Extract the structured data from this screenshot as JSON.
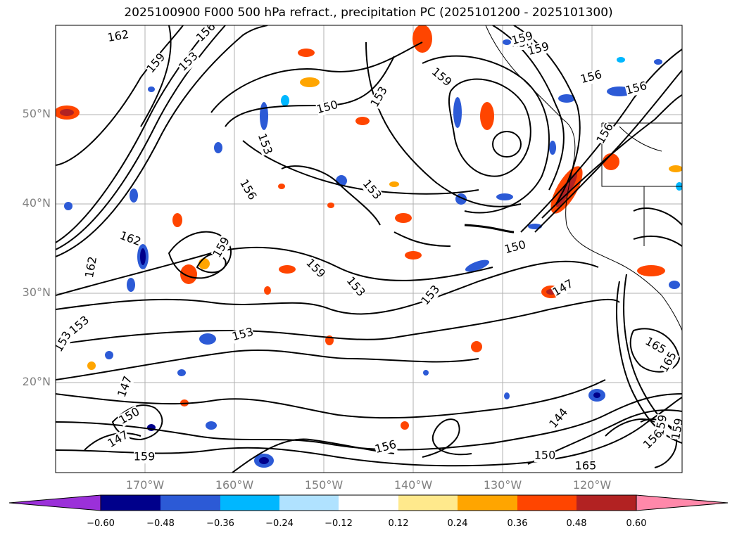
{
  "title": "2025100900 F000 500 hPa refract., precipitation PC (2025101200 - 2025101300)",
  "lat_labels": [
    "50°N",
    "40°N",
    "30°N",
    "20°N"
  ],
  "lon_labels": [
    "170°W",
    "160°W",
    "150°W",
    "140°W",
    "130°W",
    "120°W"
  ],
  "colorbar": {
    "ticks": [
      "−0.60",
      "−0.48",
      "−0.36",
      "−0.24",
      "−0.12",
      "0.12",
      "0.24",
      "0.36",
      "0.48",
      "0.60"
    ],
    "colors": [
      "#9b30d9",
      "#00008b",
      "#2c5ad6",
      "#00b7ff",
      "#b0e2ff",
      "#ffffff",
      "#ffe98c",
      "#ffa500",
      "#ff4500",
      "#b22222",
      "#ff88aa"
    ]
  },
  "contour_labels": [
    {
      "text": "162"
    },
    {
      "text": "159"
    },
    {
      "text": "153"
    },
    {
      "text": "156"
    },
    {
      "text": "150"
    },
    {
      "text": "153"
    },
    {
      "text": "153"
    },
    {
      "text": "156"
    },
    {
      "text": "153"
    },
    {
      "text": "159"
    },
    {
      "text": "159"
    },
    {
      "text": "156"
    },
    {
      "text": "159"
    },
    {
      "text": "156"
    },
    {
      "text": "156"
    },
    {
      "text": "162"
    },
    {
      "text": "162"
    },
    {
      "text": "159"
    },
    {
      "text": "159"
    },
    {
      "text": "153"
    },
    {
      "text": "150"
    },
    {
      "text": "153"
    },
    {
      "text": "147"
    },
    {
      "text": "153"
    },
    {
      "text": "153"
    },
    {
      "text": "153"
    },
    {
      "text": "147"
    },
    {
      "text": "150"
    },
    {
      "text": "147"
    },
    {
      "text": "159"
    },
    {
      "text": "156"
    },
    {
      "text": "144"
    },
    {
      "text": "150"
    },
    {
      "text": "165"
    },
    {
      "text": "159"
    },
    {
      "text": "159"
    },
    {
      "text": "156"
    },
    {
      "text": "156"
    },
    {
      "text": "165"
    },
    {
      "text": "165"
    }
  ]
}
